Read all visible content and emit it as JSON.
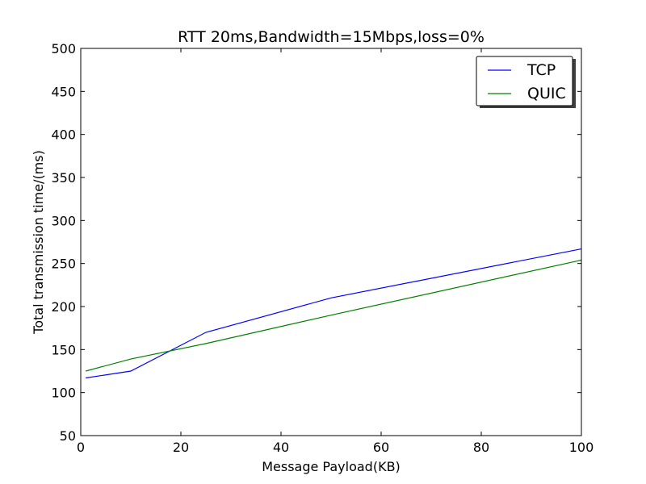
{
  "chart_data": {
    "type": "line",
    "title": "RTT 20ms,Bandwidth=15Mbps,loss=0%",
    "xlabel": "Message Payload(KB)",
    "ylabel": "Total transmission time/(ms)",
    "xlim": [
      0,
      100
    ],
    "ylim": [
      50,
      500
    ],
    "xticks": [
      "0",
      "20",
      "40",
      "60",
      "80",
      "100"
    ],
    "yticks": [
      "50",
      "100",
      "150",
      "200",
      "250",
      "300",
      "350",
      "400",
      "450",
      "500"
    ],
    "grid": false,
    "legend_position": "top-right",
    "series": [
      {
        "name": "TCP",
        "color": "#0000ff",
        "x": [
          1,
          10,
          25,
          50,
          100
        ],
        "y": [
          117,
          125,
          170,
          210,
          267
        ]
      },
      {
        "name": "QUIC",
        "color": "#008000",
        "x": [
          1,
          10,
          25,
          50,
          100
        ],
        "y": [
          125,
          139,
          157,
          190,
          254
        ]
      }
    ]
  }
}
